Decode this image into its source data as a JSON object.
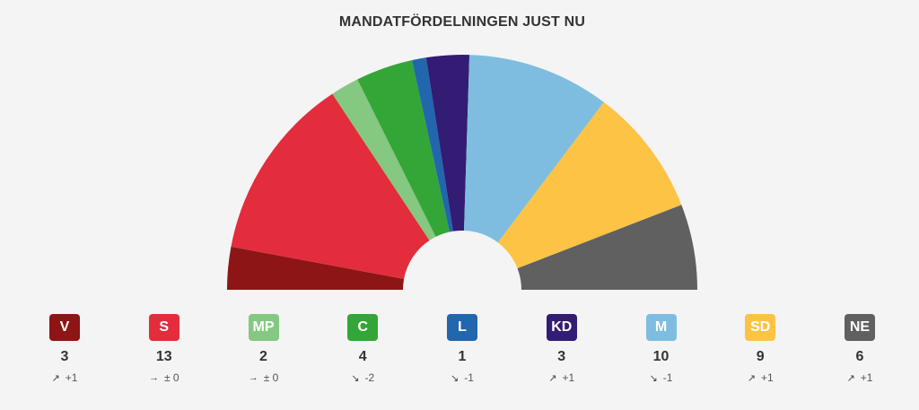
{
  "title": "MANDATFÖRDELNINGEN JUST NU",
  "chart_data": {
    "type": "parliament-semicircle",
    "categories": [
      "V",
      "S",
      "MP",
      "C",
      "L",
      "KD",
      "M",
      "SD",
      "NE"
    ],
    "values": [
      3,
      13,
      2,
      4,
      1,
      3,
      10,
      9,
      6
    ],
    "changes": [
      "+1",
      "± 0",
      "± 0",
      "-2",
      "-1",
      "+1",
      "-1",
      "+1",
      "+1"
    ],
    "trend_icons": [
      "arrow-up-right-icon",
      "arrow-right-icon",
      "arrow-right-icon",
      "arrow-down-right-icon",
      "arrow-down-right-icon",
      "arrow-up-right-icon",
      "arrow-down-right-icon",
      "arrow-up-right-icon",
      "arrow-up-right-icon"
    ],
    "colors": [
      "#8e1516",
      "#e32d3c",
      "#84c881",
      "#33a637",
      "#2266ad",
      "#331c73",
      "#7ebde0",
      "#fdc345",
      "#606060"
    ]
  }
}
